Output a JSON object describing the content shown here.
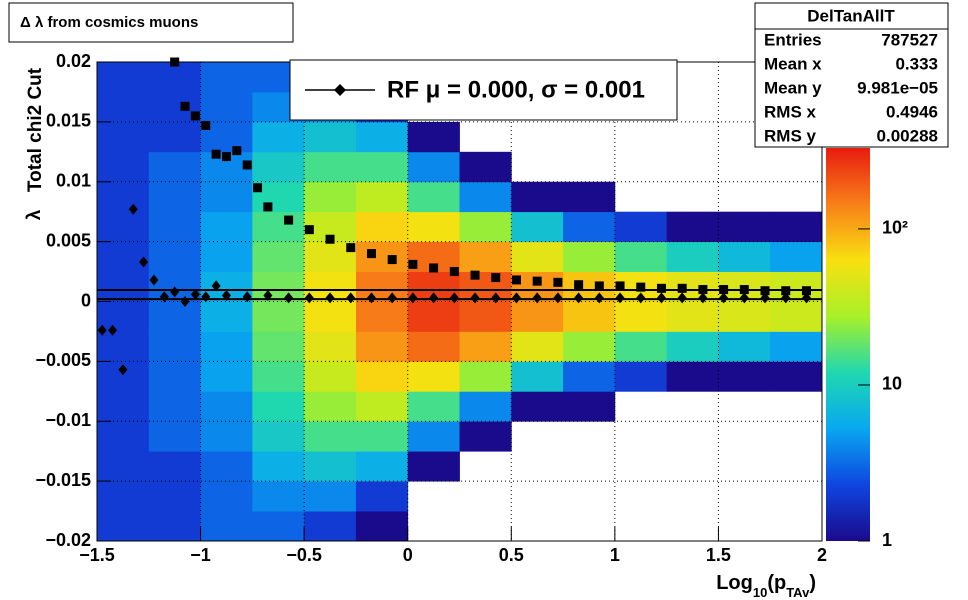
{
  "chart_data": {
    "type": "heatmap",
    "title": "Δ λ from cosmics muons",
    "x_label_parts": [
      "Log",
      "10",
      "(p",
      "TAv",
      ")"
    ],
    "y_label": "Total chi2 Cut",
    "y_label_symbol": "λ",
    "xlim": [
      -1.5,
      2
    ],
    "ylim": [
      -0.02,
      0.02
    ],
    "xticks": [
      {
        "value": -1.5,
        "label": "−1.5"
      },
      {
        "value": -1,
        "label": "−1"
      },
      {
        "value": -0.5,
        "label": "−0.5"
      },
      0,
      0.5,
      1,
      1.5,
      2
    ],
    "yticks": [
      {
        "value": -0.02,
        "label": "−0.02"
      },
      {
        "value": -0.015,
        "label": "−0.015"
      },
      {
        "value": -0.01,
        "label": "−0.01"
      },
      {
        "value": -0.005,
        "label": "−0.005"
      },
      0,
      0.005,
      0.01,
      0.015,
      0.02
    ],
    "grid": true,
    "zlim": [
      1,
      330
    ],
    "zlog": true,
    "zticks": [
      1,
      10,
      {
        "value": 100,
        "label": "10²"
      }
    ],
    "colormap": [
      "#1a0a8c",
      "#0f45e0",
      "#08a8f0",
      "#20d8b0",
      "#a8f028",
      "#f8e010",
      "#f88018",
      "#e81c10"
    ],
    "xbins": [
      -1.5,
      -1.25,
      -1,
      -0.75,
      -0.5,
      -0.25,
      0,
      0.25,
      0.5,
      0.75,
      1,
      1.25,
      1.5,
      1.75,
      2
    ],
    "ybins": [
      -0.02,
      -0.0175,
      -0.015,
      -0.0125,
      -0.01,
      -0.0075,
      -0.005,
      -0.0025,
      0,
      0.0025,
      0.005,
      0.0075,
      0.01,
      0.0125,
      0.015,
      0.0175,
      0.02
    ],
    "z": [
      [
        2,
        2,
        2,
        2,
        2,
        2,
        2,
        2,
        2,
        2,
        2,
        2,
        2,
        2,
        2,
        2
      ],
      [
        2,
        2,
        2,
        3,
        3,
        3,
        3,
        3,
        3,
        3,
        3,
        3,
        3,
        2,
        2,
        2
      ],
      [
        3,
        3,
        3,
        4,
        4,
        5,
        5,
        6,
        6,
        5,
        5,
        4,
        4,
        3,
        3,
        3
      ],
      [
        3,
        4,
        6,
        9,
        12,
        15,
        18,
        20,
        20,
        18,
        15,
        12,
        9,
        6,
        4,
        3
      ],
      [
        2,
        4,
        8,
        15,
        25,
        38,
        50,
        60,
        60,
        50,
        38,
        25,
        15,
        8,
        4,
        2
      ],
      [
        1,
        2,
        6,
        15,
        35,
        70,
        120,
        150,
        150,
        120,
        70,
        35,
        15,
        6,
        2,
        1
      ],
      [
        0,
        0,
        1,
        4,
        15,
        60,
        170,
        250,
        250,
        170,
        60,
        15,
        4,
        1,
        0,
        0
      ],
      [
        0,
        0,
        0,
        1,
        4,
        25,
        110,
        200,
        200,
        110,
        25,
        4,
        1,
        0,
        0,
        0
      ],
      [
        0,
        0,
        0,
        0,
        1,
        8,
        50,
        120,
        120,
        50,
        8,
        1,
        0,
        0,
        0,
        0
      ],
      [
        0,
        0,
        0,
        0,
        1,
        3,
        25,
        80,
        80,
        25,
        3,
        1,
        0,
        0,
        0,
        0
      ],
      [
        0,
        0,
        0,
        0,
        0,
        2,
        15,
        60,
        60,
        15,
        2,
        0,
        0,
        0,
        0,
        0
      ],
      [
        0,
        0,
        0,
        0,
        0,
        1,
        10,
        50,
        50,
        10,
        1,
        0,
        0,
        0,
        0,
        0
      ],
      [
        0,
        0,
        0,
        0,
        0,
        1,
        7,
        45,
        45,
        7,
        1,
        0,
        0,
        0,
        0,
        0
      ],
      [
        0,
        0,
        0,
        0,
        0,
        1,
        5,
        40,
        40,
        5,
        1,
        0,
        0,
        0,
        0,
        0
      ]
    ],
    "overlays": [
      {
        "marker": "square",
        "color": "#000000",
        "x": [
          -1.125,
          -1.075,
          -1.025,
          -0.975,
          -0.925,
          -0.875,
          -0.825,
          -0.775,
          -0.725,
          -0.675,
          -0.575,
          -0.475,
          -0.375,
          -0.275,
          -0.175,
          -0.075,
          0.025,
          0.125,
          0.225,
          0.325,
          0.425,
          0.525,
          0.625,
          0.725,
          0.825,
          0.925,
          1.025,
          1.125,
          1.225,
          1.325,
          1.425,
          1.525,
          1.625,
          1.725,
          1.825,
          1.925
        ],
        "values": [
          0.02,
          0.0163,
          0.0155,
          0.0147,
          0.0123,
          0.0121,
          0.0126,
          0.0114,
          0.0095,
          0.0079,
          0.0068,
          0.006,
          0.0052,
          0.0045,
          0.004,
          0.0035,
          0.0031,
          0.0028,
          0.0025,
          0.0022,
          0.002,
          0.0018,
          0.0017,
          0.0016,
          0.0014,
          0.0013,
          0.0013,
          0.0012,
          0.0011,
          0.0011,
          0.001,
          0.001,
          0.001,
          0.0009,
          0.0009,
          0.0009
        ]
      },
      {
        "marker": "diamond",
        "color": "#000000",
        "name": "RF μ =  0.000, σ =   0.001",
        "x": [
          -1.475,
          -1.425,
          -1.375,
          -1.325,
          -1.275,
          -1.225,
          -1.175,
          -1.125,
          -1.075,
          -1.025,
          -0.975,
          -0.925,
          -0.875,
          -0.775,
          -0.675,
          -0.575,
          -0.475,
          -0.375,
          -0.275,
          -0.175,
          -0.075,
          0.025,
          0.125,
          0.225,
          0.325,
          0.425,
          0.525,
          0.625,
          0.725,
          0.825,
          0.925,
          1.025,
          1.125,
          1.225,
          1.325,
          1.425,
          1.525,
          1.625,
          1.725,
          1.825,
          1.925
        ],
        "values": [
          -0.0024,
          -0.0024,
          -0.0057,
          0.0077,
          0.0033,
          0.0018,
          0.0004,
          0.0008,
          0.0,
          0.0006,
          0.0004,
          0.0013,
          0.0005,
          0.0004,
          0.0005,
          0.0003,
          0.0003,
          0.0003,
          0.0003,
          0.0003,
          0.0003,
          0.0003,
          0.0003,
          0.0003,
          0.0003,
          0.0003,
          0.0003,
          0.0003,
          0.0003,
          0.0003,
          0.0003,
          0.0003,
          0.0003,
          0.0003,
          0.0003,
          0.0003,
          0.0003,
          0.0003,
          0.0003,
          0.0003,
          0.0003
        ]
      }
    ],
    "hlines": [
      0.00096,
      0.0002
    ],
    "stats": {
      "title": "DelTanAllT",
      "rows": [
        [
          "Entries",
          "787527"
        ],
        [
          "Mean x",
          "0.333"
        ],
        [
          "Mean y",
          "9.981e−05"
        ],
        [
          "RMS x",
          "0.4946"
        ],
        [
          "RMS y",
          "0.00288"
        ]
      ]
    }
  }
}
